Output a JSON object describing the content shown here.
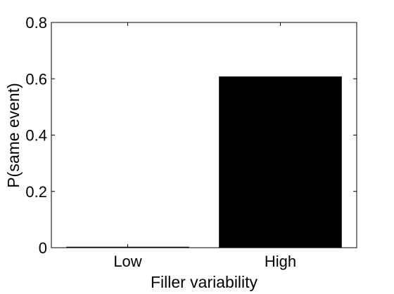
{
  "chart_data": {
    "type": "bar",
    "categories": [
      "Low",
      "High"
    ],
    "values": [
      0.002,
      0.607
    ],
    "xlabel": "Filler variability",
    "ylabel": "P(same event)",
    "ylim": [
      0,
      0.8
    ],
    "yticks": [
      "0",
      "0.2",
      "0.4",
      "0.6",
      "0.8"
    ],
    "grid": false,
    "legend": "none",
    "bar_color": "#000000"
  }
}
